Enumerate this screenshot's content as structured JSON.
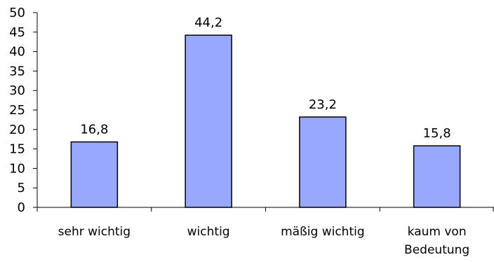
{
  "chart_data": {
    "type": "bar",
    "categories": [
      "sehr wichtig",
      "wichtig",
      "mäßig wichtig",
      "kaum von Bedeutung"
    ],
    "category_lines": [
      [
        "sehr wichtig"
      ],
      [
        "wichtig"
      ],
      [
        "mäßig wichtig"
      ],
      [
        "kaum von",
        "Bedeutung"
      ]
    ],
    "values": [
      16.8,
      44.2,
      23.2,
      15.8
    ],
    "data_labels": [
      "16,8",
      "44,2",
      "23,2",
      "15,8"
    ],
    "yticks": [
      "0",
      "5",
      "10",
      "15",
      "20",
      "25",
      "30",
      "35",
      "40",
      "45",
      "50"
    ],
    "ylim": [
      0,
      50
    ],
    "title": "",
    "xlabel": "",
    "ylabel": "",
    "grid": false,
    "colors": {
      "bar_fill": "#99a8ff",
      "bar_stroke": "#000000",
      "axis": "#000000"
    }
  }
}
